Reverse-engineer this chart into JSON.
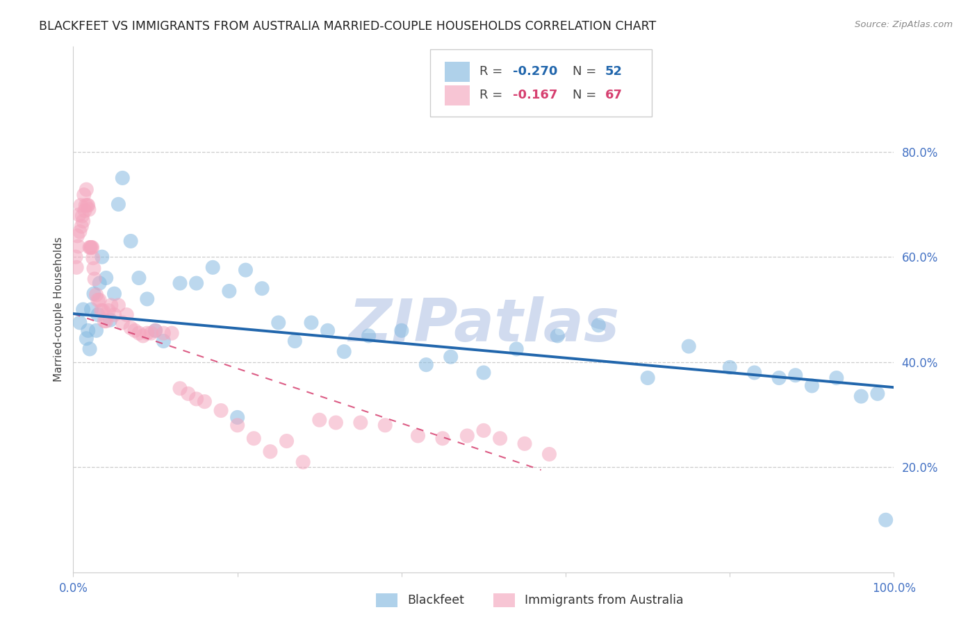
{
  "title": "BLACKFEET VS IMMIGRANTS FROM AUSTRALIA MARRIED-COUPLE HOUSEHOLDS CORRELATION CHART",
  "source": "Source: ZipAtlas.com",
  "ylabel": "Married-couple Households",
  "xlim": [
    0,
    1.0
  ],
  "ylim": [
    0,
    1.0
  ],
  "blue_scatter_x": [
    0.008,
    0.012,
    0.016,
    0.018,
    0.02,
    0.022,
    0.025,
    0.028,
    0.03,
    0.032,
    0.035,
    0.04,
    0.045,
    0.05,
    0.055,
    0.06,
    0.07,
    0.08,
    0.09,
    0.1,
    0.11,
    0.13,
    0.15,
    0.17,
    0.19,
    0.21,
    0.23,
    0.25,
    0.27,
    0.29,
    0.31,
    0.33,
    0.36,
    0.4,
    0.43,
    0.46,
    0.5,
    0.54,
    0.59,
    0.64,
    0.7,
    0.75,
    0.8,
    0.83,
    0.86,
    0.88,
    0.9,
    0.93,
    0.96,
    0.98,
    0.99,
    0.2
  ],
  "blue_scatter_y": [
    0.475,
    0.5,
    0.445,
    0.46,
    0.425,
    0.5,
    0.53,
    0.46,
    0.49,
    0.55,
    0.6,
    0.56,
    0.48,
    0.53,
    0.7,
    0.75,
    0.63,
    0.56,
    0.52,
    0.46,
    0.44,
    0.55,
    0.55,
    0.58,
    0.535,
    0.575,
    0.54,
    0.475,
    0.44,
    0.475,
    0.46,
    0.42,
    0.45,
    0.46,
    0.395,
    0.41,
    0.38,
    0.425,
    0.45,
    0.47,
    0.37,
    0.43,
    0.39,
    0.38,
    0.37,
    0.375,
    0.355,
    0.37,
    0.335,
    0.34,
    0.1,
    0.295
  ],
  "pink_scatter_x": [
    0.003,
    0.004,
    0.005,
    0.006,
    0.007,
    0.008,
    0.009,
    0.01,
    0.011,
    0.012,
    0.013,
    0.014,
    0.015,
    0.016,
    0.017,
    0.018,
    0.019,
    0.02,
    0.021,
    0.022,
    0.023,
    0.024,
    0.025,
    0.026,
    0.028,
    0.03,
    0.032,
    0.034,
    0.036,
    0.038,
    0.04,
    0.043,
    0.046,
    0.05,
    0.055,
    0.06,
    0.065,
    0.07,
    0.075,
    0.08,
    0.085,
    0.09,
    0.095,
    0.1,
    0.11,
    0.12,
    0.13,
    0.14,
    0.15,
    0.16,
    0.18,
    0.2,
    0.22,
    0.24,
    0.26,
    0.28,
    0.3,
    0.32,
    0.35,
    0.38,
    0.42,
    0.45,
    0.48,
    0.5,
    0.52,
    0.55,
    0.58
  ],
  "pink_scatter_y": [
    0.6,
    0.58,
    0.64,
    0.62,
    0.68,
    0.648,
    0.698,
    0.658,
    0.678,
    0.668,
    0.718,
    0.688,
    0.698,
    0.728,
    0.698,
    0.698,
    0.69,
    0.618,
    0.618,
    0.618,
    0.618,
    0.598,
    0.578,
    0.558,
    0.528,
    0.518,
    0.518,
    0.498,
    0.498,
    0.478,
    0.478,
    0.498,
    0.508,
    0.49,
    0.508,
    0.475,
    0.49,
    0.465,
    0.46,
    0.455,
    0.45,
    0.455,
    0.455,
    0.46,
    0.455,
    0.455,
    0.35,
    0.34,
    0.33,
    0.325,
    0.308,
    0.28,
    0.255,
    0.23,
    0.25,
    0.21,
    0.29,
    0.285,
    0.285,
    0.28,
    0.26,
    0.255,
    0.26,
    0.27,
    0.255,
    0.245,
    0.225
  ],
  "blue_line_x": [
    0.0,
    1.0
  ],
  "blue_line_y": [
    0.492,
    0.352
  ],
  "pink_line_x": [
    0.0,
    0.57
  ],
  "pink_line_y": [
    0.492,
    0.195
  ],
  "blue_scatter_color": "#85b9e0",
  "pink_scatter_color": "#f4a6be",
  "blue_line_color": "#2166ac",
  "pink_line_color": "#d64070",
  "watermark_text": "ZIPatlas",
  "watermark_color": "#ccd8ee",
  "title_fontsize": 12.5,
  "ylabel_fontsize": 11,
  "tick_fontsize": 12,
  "axis_color": "#4472c4",
  "legend_blue_r": "-0.270",
  "legend_blue_n": "52",
  "legend_pink_r": "-0.167",
  "legend_pink_n": "67",
  "background_color": "#ffffff"
}
